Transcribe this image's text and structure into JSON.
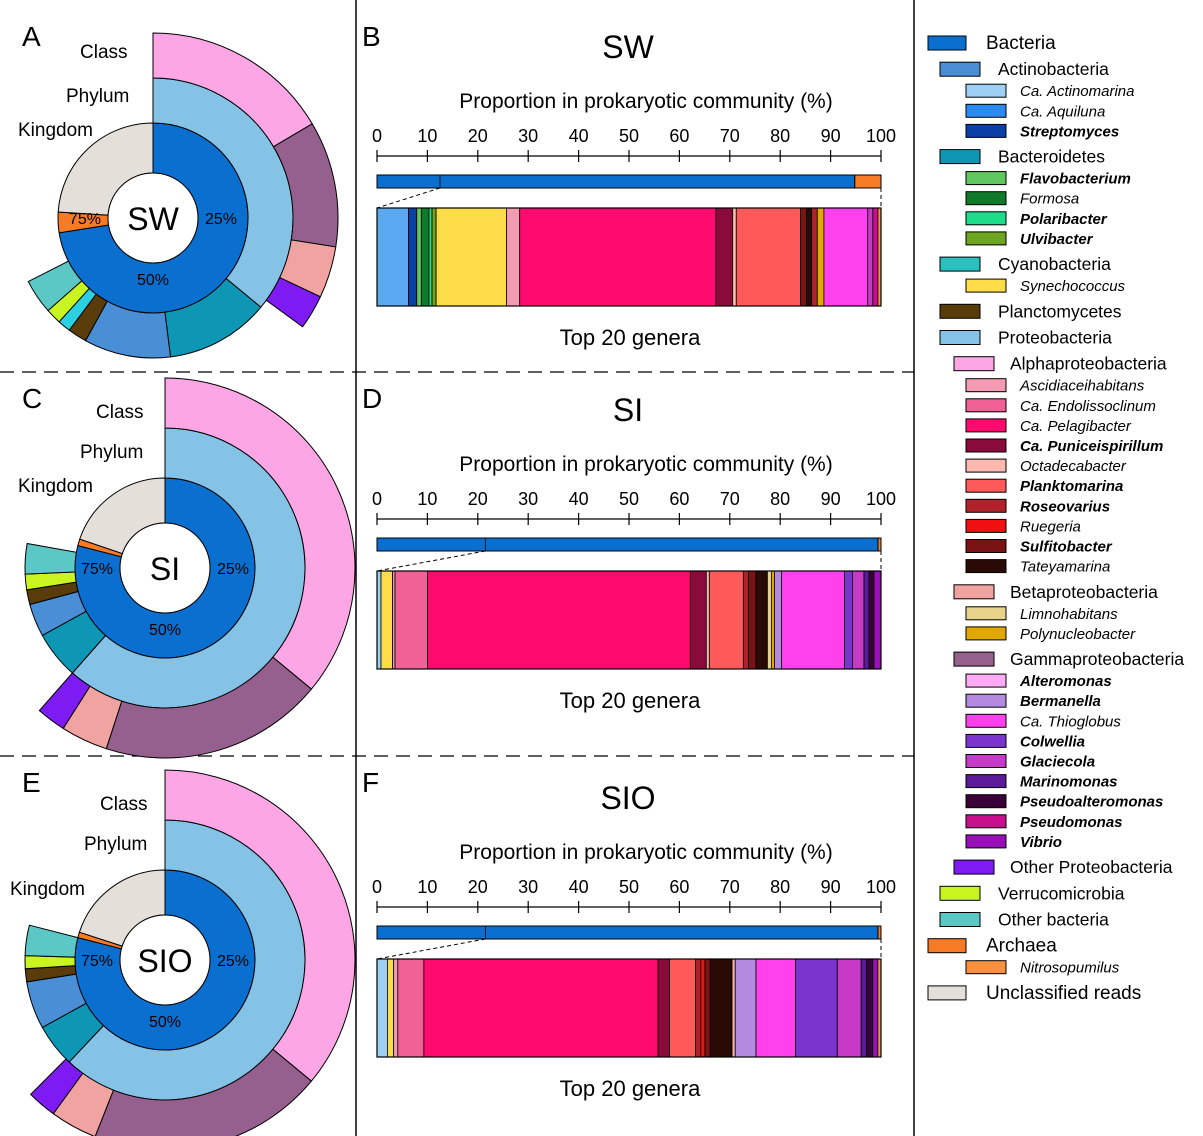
{
  "panel_letters": [
    "A",
    "B",
    "C",
    "D",
    "E",
    "F"
  ],
  "ring_labels": {
    "class": "Class",
    "phylum": "Phylum",
    "kingdom": "Kingdom"
  },
  "bar_axis_title": "Proportion in prokaryotic community (%)",
  "bar_subtitle": "Top 20 genera",
  "colors": {
    "bacteria": "#0b6fcf",
    "archaea": "#f77a25",
    "unclassified": "#e5dfda",
    "actinobacteria": "#4a8fd6",
    "bacteroidetes": "#0e97b5",
    "cyanobacteria": "#5bc8c6",
    "planctomycetes": "#5a3b0a",
    "proteobacteria": "#85c3e6",
    "verrucomicrobia": "#c8f51f",
    "other_bacteria": "#5bc8c6",
    "alphaproteobacteria": "#fda6e5",
    "betaproteobacteria": "#f0a3a0",
    "gammaproteobacteria": "#955f8e",
    "other_proteobacteria": "#7d1bf2",
    "cyan2": "#2bd0e3"
  },
  "chart_data": [
    {
      "type": "pie",
      "title": "SW",
      "rings": [
        "Kingdom",
        "Phylum",
        "Class"
      ],
      "kingdom": [
        {
          "name": "Bacteria",
          "value": 72.5
        },
        {
          "name": "Archaea",
          "value": 3.5
        },
        {
          "name": "Unclassified reads",
          "value": 24.0
        }
      ],
      "phylum": [
        {
          "name": "Proteobacteria",
          "value": 36.0
        },
        {
          "name": "Bacteroidetes",
          "value": 12.0
        },
        {
          "name": "Actinobacteria",
          "value": 10.0
        },
        {
          "name": "Planctomycetes",
          "value": 2.2
        },
        {
          "name": "Cyanobacteria",
          "value": 1.5
        },
        {
          "name": "Verrucomicrobia",
          "value": 1.8
        },
        {
          "name": "Other bacteria",
          "value": 4.0
        }
      ],
      "class": [
        {
          "name": "Alphaproteobacteria",
          "value": 16.5
        },
        {
          "name": "Gammaproteobacteria",
          "value": 11.0
        },
        {
          "name": "Betaproteobacteria",
          "value": 4.5
        },
        {
          "name": "Other Proteobacteria",
          "value": 3.0
        }
      ],
      "center_ticks": [
        "25%",
        "50%",
        "75%"
      ]
    },
    {
      "type": "bar",
      "title": "SW",
      "xlabel": "Proportion in prokaryotic community (%)",
      "xlim": [
        0,
        100
      ],
      "ticks": [
        0,
        10,
        20,
        30,
        40,
        50,
        60,
        70,
        80,
        90,
        100
      ],
      "top_bar": [
        {
          "name": "Bacteria",
          "color": "#0b6fcf",
          "value": 94.8
        },
        {
          "name": "Archaea",
          "color": "#f77a25",
          "value": 5.2
        }
      ],
      "zoom_from": 12.5,
      "genera_label": "Top 20 genera",
      "genera": [
        {
          "name": "Ca. Actinomarina",
          "color": "#5aa9f0",
          "value": 6.2
        },
        {
          "name": "Streptomyces",
          "color": "#0a3fa6",
          "value": 1.6
        },
        {
          "name": "Flavobacterium",
          "color": "#5ec85e",
          "value": 0.9
        },
        {
          "name": "Formosa",
          "color": "#0e7a2a",
          "value": 1.5
        },
        {
          "name": "Polaribacter",
          "color": "#1ddc8a",
          "value": 0.6
        },
        {
          "name": "Ulvibacter",
          "color": "#6ea520",
          "value": 0.8
        },
        {
          "name": "Synechococcus",
          "color": "#fddc4a",
          "value": 13.8
        },
        {
          "name": "Ascidiaceihabitans",
          "color": "#f49ab2",
          "value": 2.6
        },
        {
          "name": "Ca. Pelagibacter",
          "color": "#ff0a6e",
          "value": 38.5
        },
        {
          "name": "Ca. Puniceispirillum",
          "color": "#8a0a3c",
          "value": 3.3
        },
        {
          "name": "Octadecabacter",
          "color": "#fcb9b0",
          "value": 0.7
        },
        {
          "name": "Planktomarina",
          "color": "#ff5a5a",
          "value": 12.6
        },
        {
          "name": "Sulfitobacter",
          "color": "#7a1414",
          "value": 1.2
        },
        {
          "name": "Tateyamarina",
          "color": "#2a0a05",
          "value": 1.0
        },
        {
          "name": "Roseovarius",
          "color": "#b2222c",
          "value": 1.1
        },
        {
          "name": "Polynucleobacter",
          "color": "#e0a800",
          "value": 1.3
        },
        {
          "name": "Ca. Thioglobus",
          "color": "#ff40ec",
          "value": 8.6
        },
        {
          "name": "Glaciecola",
          "color": "#c73ac7",
          "value": 1.0
        },
        {
          "name": "Pseudomonas",
          "color": "#c80f8c",
          "value": 1.0
        },
        {
          "name": "Nitrosopumilus",
          "color": "#fa9140",
          "value": 0.6
        }
      ]
    },
    {
      "type": "pie",
      "title": "SI",
      "rings": [
        "Kingdom",
        "Phylum",
        "Class"
      ],
      "kingdom": [
        {
          "name": "Bacteria",
          "value": 79.0
        },
        {
          "name": "Archaea",
          "value": 1.2
        },
        {
          "name": "Unclassified reads",
          "value": 19.8
        }
      ],
      "phylum": [
        {
          "name": "Proteobacteria",
          "value": 61.5
        },
        {
          "name": "Bacteroidetes",
          "value": 5.5
        },
        {
          "name": "Actinobacteria",
          "value": 3.8
        },
        {
          "name": "Planctomycetes",
          "value": 1.7
        },
        {
          "name": "Verrucomicrobia",
          "value": 1.8
        },
        {
          "name": "Other bacteria",
          "value": 3.5
        }
      ],
      "class": [
        {
          "name": "Alphaproteobacteria",
          "value": 36.0
        },
        {
          "name": "Gammaproteobacteria",
          "value": 19.0
        },
        {
          "name": "Betaproteobacteria",
          "value": 4.0
        },
        {
          "name": "Other Proteobacteria",
          "value": 2.5
        }
      ],
      "center_ticks": [
        "25%",
        "50%",
        "75%"
      ]
    },
    {
      "type": "bar",
      "title": "SI",
      "xlabel": "Proportion in prokaryotic community (%)",
      "xlim": [
        0,
        100
      ],
      "ticks": [
        0,
        10,
        20,
        30,
        40,
        50,
        60,
        70,
        80,
        90,
        100
      ],
      "top_bar": [
        {
          "name": "Bacteria",
          "color": "#0b6fcf",
          "value": 99.4
        },
        {
          "name": "Archaea",
          "color": "#f77a25",
          "value": 0.6
        }
      ],
      "zoom_from": 21.5,
      "genera_label": "Top 20 genera",
      "genera": [
        {
          "name": "Ca. Actinomarina",
          "color": "#9dd0f5",
          "value": 0.8
        },
        {
          "name": "Synechococcus",
          "color": "#fddc4a",
          "value": 2.3
        },
        {
          "name": "Ascidiaceihabitans",
          "color": "#f49ab2",
          "value": 0.5
        },
        {
          "name": "Ca. Endolissoclinum",
          "color": "#f06295",
          "value": 6.5
        },
        {
          "name": "Ca. Pelagibacter",
          "color": "#ff0a6e",
          "value": 52.5
        },
        {
          "name": "Ca. Puniceispirillum",
          "color": "#8a0a3c",
          "value": 3.2
        },
        {
          "name": "Octadecabacter",
          "color": "#fcb9b0",
          "value": 0.6
        },
        {
          "name": "Planktomarina",
          "color": "#ff5a5a",
          "value": 6.8
        },
        {
          "name": "Roseovarius",
          "color": "#b2222c",
          "value": 1.0
        },
        {
          "name": "Sulfitobacter",
          "color": "#7a1414",
          "value": 1.5
        },
        {
          "name": "Tateyamarina",
          "color": "#2a0a05",
          "value": 2.3
        },
        {
          "name": "Limnohabitans",
          "color": "#e8d38a",
          "value": 0.8
        },
        {
          "name": "Polynucleobacter",
          "color": "#e0a800",
          "value": 0.6
        },
        {
          "name": "Bermanella",
          "color": "#b48ae0",
          "value": 1.4
        },
        {
          "name": "Ca. Thioglobus",
          "color": "#ff40ec",
          "value": 12.6
        },
        {
          "name": "Colwellia",
          "color": "#7a35cf",
          "value": 1.6
        },
        {
          "name": "Glaciecola",
          "color": "#c73ac7",
          "value": 2.3
        },
        {
          "name": "Marinomonas",
          "color": "#5a1a9a",
          "value": 1.0
        },
        {
          "name": "Pseudoalteromonas",
          "color": "#3a0038",
          "value": 1.0
        },
        {
          "name": "Vibrio",
          "color": "#9a10b8",
          "value": 1.4
        }
      ]
    },
    {
      "type": "pie",
      "title": "SIO",
      "rings": [
        "Kingdom",
        "Phylum",
        "Class"
      ],
      "kingdom": [
        {
          "name": "Bacteria",
          "value": 79.0
        },
        {
          "name": "Archaea",
          "value": 1.0
        },
        {
          "name": "Unclassified reads",
          "value": 20.0
        }
      ],
      "phylum": [
        {
          "name": "Proteobacteria",
          "value": 62.0
        },
        {
          "name": "Bacteroidetes",
          "value": 5.0
        },
        {
          "name": "Actinobacteria",
          "value": 5.5
        },
        {
          "name": "Planctomycetes",
          "value": 1.5
        },
        {
          "name": "Verrucomicrobia",
          "value": 1.5
        },
        {
          "name": "Other bacteria",
          "value": 3.5
        }
      ],
      "class": [
        {
          "name": "Alphaproteobacteria",
          "value": 36.0
        },
        {
          "name": "Gammaproteobacteria",
          "value": 20.0
        },
        {
          "name": "Betaproteobacteria",
          "value": 4.0
        },
        {
          "name": "Other Proteobacteria",
          "value": 2.5
        }
      ],
      "center_ticks": [
        "25%",
        "50%",
        "75%"
      ]
    },
    {
      "type": "bar",
      "title": "SIO",
      "xlabel": "Proportion in prokaryotic community (%)",
      "xlim": [
        0,
        100
      ],
      "ticks": [
        0,
        10,
        20,
        30,
        40,
        50,
        60,
        70,
        80,
        90,
        100
      ],
      "top_bar": [
        {
          "name": "Bacteria",
          "color": "#0b6fcf",
          "value": 99.4
        },
        {
          "name": "Archaea",
          "color": "#f77a25",
          "value": 0.6
        }
      ],
      "zoom_from": 21.5,
      "genera_label": "Top 20 genera",
      "genera": [
        {
          "name": "Ca. Actinomarina",
          "color": "#9dd0f5",
          "value": 2.0
        },
        {
          "name": "Synechococcus",
          "color": "#fddc4a",
          "value": 1.2
        },
        {
          "name": "Ascidiaceihabitans",
          "color": "#f49ab2",
          "value": 0.8
        },
        {
          "name": "Ca. Endolissoclinum",
          "color": "#f06295",
          "value": 5.0
        },
        {
          "name": "Ca. Pelagibacter",
          "color": "#ff0a6e",
          "value": 45.0
        },
        {
          "name": "Ca. Puniceispirillum",
          "color": "#8a0a3c",
          "value": 2.2
        },
        {
          "name": "Planktomarina",
          "color": "#ff5a5a",
          "value": 5.0
        },
        {
          "name": "Roseovarius",
          "color": "#b2222c",
          "value": 1.0
        },
        {
          "name": "Ruegeria",
          "color": "#f01010",
          "value": 0.8
        },
        {
          "name": "Sulfitobacter",
          "color": "#7a1414",
          "value": 1.0
        },
        {
          "name": "Tateyamarina",
          "color": "#2a0a05",
          "value": 4.2
        },
        {
          "name": "Octadecabacter",
          "color": "#fcb9b0",
          "value": 0.6
        },
        {
          "name": "Bermanella",
          "color": "#b48ae0",
          "value": 4.0
        },
        {
          "name": "Ca. Thioglobus",
          "color": "#ff40ec",
          "value": 7.6
        },
        {
          "name": "Colwellia",
          "color": "#7a35cf",
          "value": 8.0
        },
        {
          "name": "Glaciecola",
          "color": "#c73ac7",
          "value": 4.6
        },
        {
          "name": "Marinomonas",
          "color": "#5a1a9a",
          "value": 1.0
        },
        {
          "name": "Pseudoalteromonas",
          "color": "#3a0038",
          "value": 1.2
        },
        {
          "name": "Vibrio",
          "color": "#9a10b8",
          "value": 1.0
        },
        {
          "name": "Nitrosopumilus",
          "color": "#fa9140",
          "value": 0.6
        }
      ]
    }
  ],
  "legend": [
    {
      "label": "Bacteria",
      "color": "#0b6fcf",
      "level": 0,
      "size": "large"
    },
    {
      "label": "Actinobacteria",
      "color": "#4a8fd6",
      "level": 1,
      "size": "medium"
    },
    {
      "label": "Ca. Actinomarina",
      "color": "#9dd0f5",
      "level": 2,
      "style": "italic"
    },
    {
      "label": "Ca. Aquiluna",
      "color": "#2a8af0",
      "level": 2,
      "style": "italic"
    },
    {
      "label": "Streptomyces",
      "color": "#0a3fa6",
      "level": 2,
      "style": "bold-italic"
    },
    {
      "label": "Bacteroidetes",
      "color": "#0e97b5",
      "level": 1,
      "size": "medium"
    },
    {
      "label": "Flavobacterium",
      "color": "#5ec85e",
      "level": 2,
      "style": "bold-italic"
    },
    {
      "label": "Formosa",
      "color": "#0e7a2a",
      "level": 2,
      "style": "italic"
    },
    {
      "label": "Polaribacter",
      "color": "#1ddc8a",
      "level": 2,
      "style": "bold-italic"
    },
    {
      "label": "Ulvibacter",
      "color": "#6ea520",
      "level": 2,
      "style": "bold-italic"
    },
    {
      "label": "Cyanobacteria",
      "color": "#2bc0c0",
      "level": 1,
      "size": "medium"
    },
    {
      "label": "Synechococcus",
      "color": "#fddc4a",
      "level": 2,
      "style": "italic"
    },
    {
      "label": "Planctomycetes",
      "color": "#5a3b0a",
      "level": 1,
      "size": "medium"
    },
    {
      "label": "Proteobacteria",
      "color": "#85c3e6",
      "level": 1,
      "size": "medium"
    },
    {
      "label": "Alphaproteobacteria",
      "color": "#fda6e5",
      "level": 1.5,
      "size": "medium"
    },
    {
      "label": "Ascidiaceihabitans",
      "color": "#f49ab2",
      "level": 2,
      "style": "italic"
    },
    {
      "label": "Ca. Endolissoclinum",
      "color": "#f06295",
      "level": 2,
      "style": "italic"
    },
    {
      "label": "Ca. Pelagibacter",
      "color": "#ff0a6e",
      "level": 2,
      "style": "italic"
    },
    {
      "label": "Ca. Puniceispirillum",
      "color": "#8a0a3c",
      "level": 2,
      "style": "bold-italic"
    },
    {
      "label": "Octadecabacter",
      "color": "#fcb9b0",
      "level": 2,
      "style": "italic"
    },
    {
      "label": "Planktomarina",
      "color": "#ff5a5a",
      "level": 2,
      "style": "bold-italic"
    },
    {
      "label": "Roseovarius",
      "color": "#b2222c",
      "level": 2,
      "style": "bold-italic"
    },
    {
      "label": "Ruegeria",
      "color": "#f01010",
      "level": 2,
      "style": "italic"
    },
    {
      "label": "Sulfitobacter",
      "color": "#7a1414",
      "level": 2,
      "style": "bold-italic"
    },
    {
      "label": "Tateyamarina",
      "color": "#2a0a05",
      "level": 2,
      "style": "italic"
    },
    {
      "label": "Betaproteobacteria",
      "color": "#f0a3a0",
      "level": 1.5,
      "size": "medium"
    },
    {
      "label": "Limnohabitans",
      "color": "#e8d38a",
      "level": 2,
      "style": "italic"
    },
    {
      "label": "Polynucleobacter",
      "color": "#e0a800",
      "level": 2,
      "style": "italic"
    },
    {
      "label": "Gammaproteobacteria",
      "color": "#955f8e",
      "level": 1.5,
      "size": "medium"
    },
    {
      "label": "Alteromonas",
      "color": "#ffaaf5",
      "level": 2,
      "style": "bold-italic"
    },
    {
      "label": "Bermanella",
      "color": "#b48ae0",
      "level": 2,
      "style": "bold-italic"
    },
    {
      "label": "Ca. Thioglobus",
      "color": "#ff40ec",
      "level": 2,
      "style": "italic"
    },
    {
      "label": "Colwellia",
      "color": "#7a35cf",
      "level": 2,
      "style": "bold-italic"
    },
    {
      "label": "Glaciecola",
      "color": "#c73ac7",
      "level": 2,
      "style": "bold-italic"
    },
    {
      "label": "Marinomonas",
      "color": "#5a1a9a",
      "level": 2,
      "style": "bold-italic"
    },
    {
      "label": "Pseudoalteromonas",
      "color": "#3a0038",
      "level": 2,
      "style": "bold-italic"
    },
    {
      "label": "Pseudomonas",
      "color": "#c80f8c",
      "level": 2,
      "style": "bold-italic"
    },
    {
      "label": "Vibrio",
      "color": "#9a10b8",
      "level": 2,
      "style": "bold-italic"
    },
    {
      "label": "Other Proteobacteria",
      "color": "#7d1bf2",
      "level": 1.5,
      "size": "medium"
    },
    {
      "label": "Verrucomicrobia",
      "color": "#c8f51f",
      "level": 1,
      "size": "medium"
    },
    {
      "label": "Other bacteria",
      "color": "#5bc8c6",
      "level": 1,
      "size": "medium"
    },
    {
      "label": "Archaea",
      "color": "#f77a25",
      "level": 0,
      "size": "large"
    },
    {
      "label": "Nitrosopumilus",
      "color": "#fa9140",
      "level": 2,
      "style": "italic"
    },
    {
      "label": "Unclassified reads",
      "color": "#e5dfda",
      "level": 0,
      "size": "large"
    }
  ]
}
